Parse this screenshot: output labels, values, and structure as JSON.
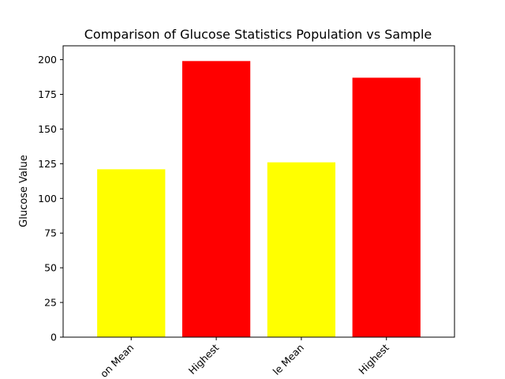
{
  "chart_data": {
    "type": "bar",
    "title": "Comparison of Glucose Statistics Population vs Sample",
    "xlabel": "",
    "ylabel": "Glucose Value",
    "categories": [
      "Population Mean",
      "Population Highest",
      "Sample Mean",
      "Sample Highest"
    ],
    "visible_tick_labels": [
      "on Mean",
      "Highest",
      "le Mean",
      "Highest"
    ],
    "values": [
      121,
      199,
      126,
      187
    ],
    "colors": [
      "#ffff00",
      "#ff0000",
      "#ffff00",
      "#ff0000"
    ],
    "ylim": [
      0,
      210
    ],
    "yticks": [
      0,
      25,
      50,
      75,
      100,
      125,
      150,
      175,
      200
    ],
    "grid": false,
    "legend": "none"
  }
}
